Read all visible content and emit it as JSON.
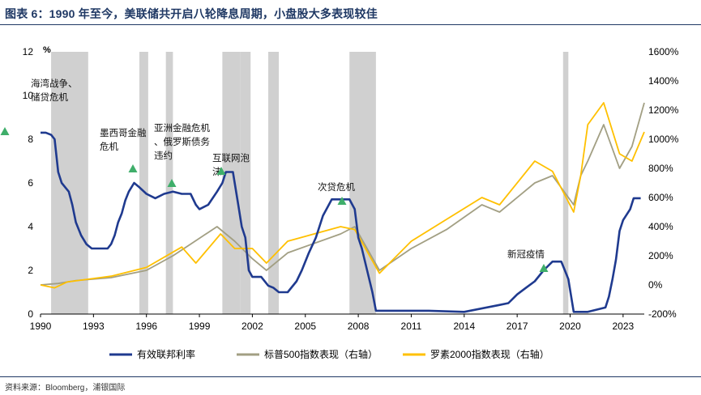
{
  "header": {
    "title": "图表 6：1990 年至今，美联储共开启八轮降息周期，小盘股大多表现较佳"
  },
  "footer": {
    "source": "资料来源：Bloomberg，浦银国际"
  },
  "colors": {
    "fed": "#1f3a8f",
    "sp500": "#a29f83",
    "russell": "#ffc000",
    "recession": "#d0d0d0",
    "marker": "#3fae6a"
  },
  "chart_data": {
    "type": "line",
    "title": "",
    "xlabel": "",
    "ylabel": "%",
    "ylabel_right": "",
    "xlim": [
      1990,
      2024.2
    ],
    "ylim": [
      0,
      12
    ],
    "ylim_right": [
      -200,
      1600
    ],
    "x_ticks": [
      1990,
      1993,
      1996,
      1999,
      2002,
      2005,
      2008,
      2011,
      2014,
      2017,
      2020,
      2023
    ],
    "x_tick_labels": [
      "1990",
      "1993",
      "1996",
      "1999",
      "2002",
      "2005",
      "2008",
      "2011",
      "2014",
      "2017",
      "2020",
      "2023"
    ],
    "y_ticks": [
      0,
      2,
      4,
      6,
      8,
      10,
      12
    ],
    "y_tick_labels": [
      "0",
      "2",
      "4",
      "6",
      "8",
      "10",
      "12"
    ],
    "y_ticks_right": [
      -200,
      0,
      200,
      400,
      600,
      800,
      1000,
      1200,
      1400,
      1600
    ],
    "y_tick_labels_right": [
      "-200%",
      "0%",
      "200%",
      "400%",
      "600%",
      "800%",
      "1000%",
      "1200%",
      "1400%",
      "1600%"
    ],
    "legend_position": "bottom",
    "grid": false,
    "shaded_periods": [
      [
        1990.6,
        1992.7
      ],
      [
        1995.6,
        1996.1
      ],
      [
        1997.1,
        1997.5
      ],
      [
        2000.3,
        2001.3
      ],
      [
        2001.3,
        2001.9
      ],
      [
        2002.9,
        2003.5
      ],
      [
        2007.5,
        2009.0
      ],
      [
        2019.6,
        2019.9
      ]
    ],
    "series": [
      {
        "name": "有效联邦利率",
        "axis": "left",
        "x": [
          1990.0,
          1990.3,
          1990.6,
          1990.8,
          1991.0,
          1991.2,
          1991.4,
          1991.6,
          1991.8,
          1992.0,
          1992.3,
          1992.6,
          1992.9,
          1993.2,
          1993.5,
          1993.8,
          1994.0,
          1994.2,
          1994.4,
          1994.6,
          1994.8,
          1995.0,
          1995.3,
          1995.6,
          1996.0,
          1996.5,
          1997.0,
          1997.5,
          1998.0,
          1998.5,
          1998.8,
          1999.0,
          1999.5,
          2000.0,
          2000.3,
          2000.5,
          2000.9,
          2001.0,
          2001.2,
          2001.4,
          2001.6,
          2001.8,
          2002.0,
          2002.5,
          2002.9,
          2003.2,
          2003.5,
          2004.0,
          2004.5,
          2004.8,
          2005.2,
          2005.6,
          2006.0,
          2006.5,
          2007.0,
          2007.5,
          2007.8,
          2008.0,
          2008.2,
          2008.5,
          2008.8,
          2009.0,
          2010.0,
          2012.0,
          2014.0,
          2015.9,
          2016.5,
          2017.0,
          2017.5,
          2018.0,
          2018.5,
          2019.0,
          2019.5,
          2019.7,
          2019.9,
          2020.2,
          2021.0,
          2022.0,
          2022.2,
          2022.4,
          2022.6,
          2022.8,
          2023.0,
          2023.4,
          2023.6,
          2024.0
        ],
        "values": [
          8.3,
          8.3,
          8.2,
          8.0,
          6.5,
          6.0,
          5.8,
          5.6,
          5.0,
          4.2,
          3.6,
          3.2,
          3.0,
          3.0,
          3.0,
          3.0,
          3.2,
          3.6,
          4.2,
          4.6,
          5.2,
          5.6,
          6.0,
          5.8,
          5.5,
          5.3,
          5.5,
          5.6,
          5.5,
          5.5,
          5.0,
          4.8,
          5.0,
          5.6,
          6.0,
          6.5,
          6.5,
          6.0,
          5.0,
          4.0,
          3.5,
          2.0,
          1.7,
          1.7,
          1.3,
          1.2,
          1.0,
          1.0,
          1.5,
          2.0,
          2.8,
          3.5,
          4.5,
          5.25,
          5.25,
          5.25,
          4.8,
          3.5,
          3.0,
          2.0,
          1.0,
          0.15,
          0.15,
          0.15,
          0.1,
          0.4,
          0.5,
          0.9,
          1.2,
          1.5,
          2.0,
          2.4,
          2.4,
          2.0,
          1.6,
          0.1,
          0.1,
          0.3,
          0.8,
          1.6,
          2.5,
          3.8,
          4.3,
          4.8,
          5.3,
          5.3
        ]
      },
      {
        "name": "标普500指数表现（右轴）",
        "axis": "right",
        "x": [
          1990.0,
          1991.0,
          1992.0,
          1994.0,
          1996.0,
          1997.5,
          1998.5,
          2000.0,
          2001.0,
          2002.0,
          2002.8,
          2004.0,
          2007.0,
          2007.8,
          2009.2,
          2011.0,
          2013.0,
          2015.0,
          2016.0,
          2018.0,
          2019.0,
          2020.2,
          2020.6,
          2021.0,
          2021.9,
          2022.8,
          2023.5,
          2024.2
        ],
        "values": [
          0,
          10,
          30,
          50,
          100,
          200,
          280,
          400,
          300,
          180,
          100,
          220,
          350,
          400,
          100,
          250,
          380,
          550,
          500,
          700,
          750,
          550,
          750,
          850,
          1100,
          800,
          950,
          1250
        ]
      },
      {
        "name": "罗素2000指数表现（右轴）",
        "axis": "right",
        "x": [
          1990.0,
          1990.8,
          1991.5,
          1994.0,
          1996.0,
          1998.0,
          1998.8,
          2000.2,
          2001.0,
          2002.0,
          2002.8,
          2004.0,
          2007.0,
          2007.8,
          2009.2,
          2011.0,
          2013.0,
          2015.0,
          2016.0,
          2018.0,
          2019.0,
          2020.2,
          2020.6,
          2021.0,
          2021.9,
          2022.8,
          2023.5,
          2024.2
        ],
        "values": [
          0,
          -20,
          20,
          60,
          120,
          260,
          150,
          350,
          250,
          250,
          150,
          300,
          400,
          380,
          80,
          300,
          450,
          600,
          550,
          850,
          780,
          500,
          750,
          1100,
          1250,
          900,
          850,
          1050
        ]
      }
    ],
    "annotations": [
      {
        "text": "海湾战争、储贷危机",
        "x": 1990.2,
        "y": 8.3
      },
      {
        "text": "墨西哥金融危机",
        "x": 1995.2,
        "y": 6.7
      },
      {
        "text": "亚洲金融危机、俄罗斯债务违约",
        "x": 1997.5,
        "y": 6.0
      },
      {
        "text": "互联网泡沫",
        "x": 2000.8,
        "y": 6.5
      },
      {
        "text": "次贷危机",
        "x": 2007.3,
        "y": 5.25
      },
      {
        "text": "新冠疫情",
        "x": 2019.0,
        "y": 2.0
      }
    ]
  }
}
